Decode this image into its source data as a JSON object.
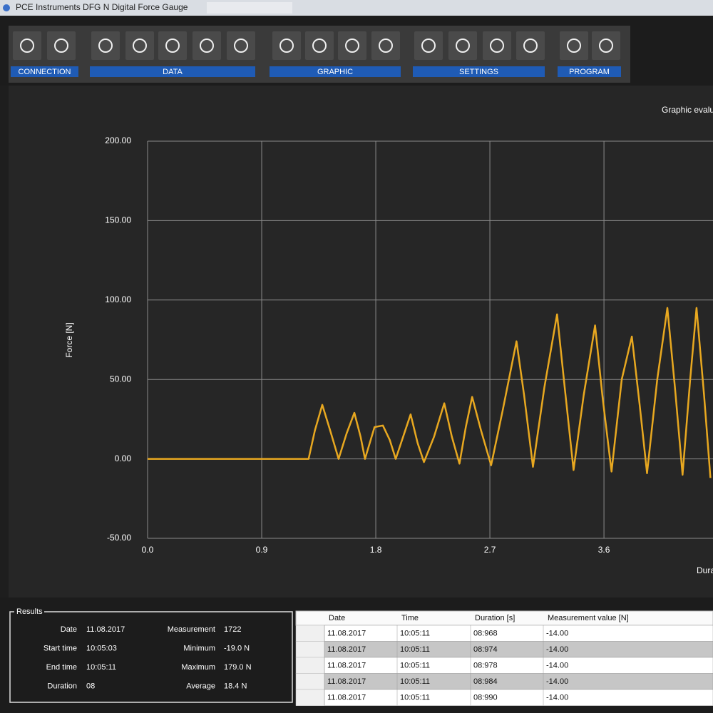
{
  "window": {
    "title": "PCE Instruments DFG N Digital Force Gauge"
  },
  "toolbar": {
    "groups": [
      "CONNECTION",
      "DATA",
      "GRAPHIC",
      "SETTINGS",
      "PROGRAM"
    ]
  },
  "chart_data": {
    "type": "line",
    "title": "Graphic evaluation",
    "x_label": "Duration [s]",
    "y_label": "Force [N]",
    "x": [
      0,
      1.27,
      1.32,
      1.378,
      1.44,
      1.507,
      1.57,
      1.631,
      1.68,
      1.715,
      1.79,
      1.856,
      1.91,
      1.957,
      2.02,
      2.075,
      2.13,
      2.18,
      2.26,
      2.34,
      2.4,
      2.46,
      2.51,
      2.56,
      2.63,
      2.71,
      2.8,
      2.91,
      2.97,
      3.04,
      3.13,
      3.23,
      3.29,
      3.36,
      3.44,
      3.53,
      3.59,
      3.66,
      3.74,
      3.82,
      3.88,
      3.94,
      4.02,
      4.1,
      4.16,
      4.22,
      4.28,
      4.33,
      4.39,
      4.44
    ],
    "values": [
      0,
      0,
      18,
      34,
      18,
      0,
      16,
      29,
      14,
      0,
      20,
      21,
      12,
      0,
      15,
      28,
      10,
      -2,
      14,
      35,
      14,
      -3,
      20,
      39,
      18,
      -4,
      30,
      74,
      40,
      -5,
      45,
      91,
      45,
      -7,
      40,
      84,
      38,
      -8,
      50,
      77,
      35,
      -9,
      50,
      95,
      45,
      -10,
      50,
      95,
      40,
      -12
    ],
    "color": "#e8a820",
    "xlim": [
      0,
      4.5
    ],
    "xticks": [
      {
        "value": 0,
        "label": "0.0"
      },
      0.9,
      1.8,
      2.7,
      3.6
    ],
    "ylim": [
      -50,
      200
    ],
    "yticks": [
      {
        "value": -50,
        "label": "-50.00"
      },
      {
        "value": 0,
        "label": "0.00"
      },
      {
        "value": 50,
        "label": "50.00"
      },
      {
        "value": 100,
        "label": "100.00"
      },
      {
        "value": 150,
        "label": "150.00"
      },
      {
        "value": 200,
        "label": "200.00"
      }
    ],
    "grid": true
  },
  "results": {
    "legend": "Results",
    "fields": [
      [
        "Date",
        "11.08.2017"
      ],
      [
        "Start time",
        "10:05:03"
      ],
      [
        "End time",
        "10:05:11"
      ],
      [
        "Duration",
        "08"
      ],
      [
        "Measurement",
        "1722"
      ],
      [
        "Minimum",
        "-19.0 N"
      ],
      [
        "Maximum",
        "179.0 N"
      ],
      [
        "Average",
        "18.4 N"
      ]
    ]
  },
  "table": {
    "headers": [
      "Date",
      "Time",
      "Duration [s]",
      "Measurement value [N]"
    ],
    "rows": [
      [
        "11.08.2017",
        "10:05:11",
        "08:968",
        "-14.00"
      ],
      [
        "11.08.2017",
        "10:05:11",
        "08:974",
        "-14.00"
      ],
      [
        "11.08.2017",
        "10:05:11",
        "08:978",
        "-14.00"
      ],
      [
        "11.08.2017",
        "10:05:11",
        "08:984",
        "-14.00"
      ],
      [
        "11.08.2017",
        "10:05:11",
        "08:990",
        "-14.00"
      ]
    ]
  }
}
